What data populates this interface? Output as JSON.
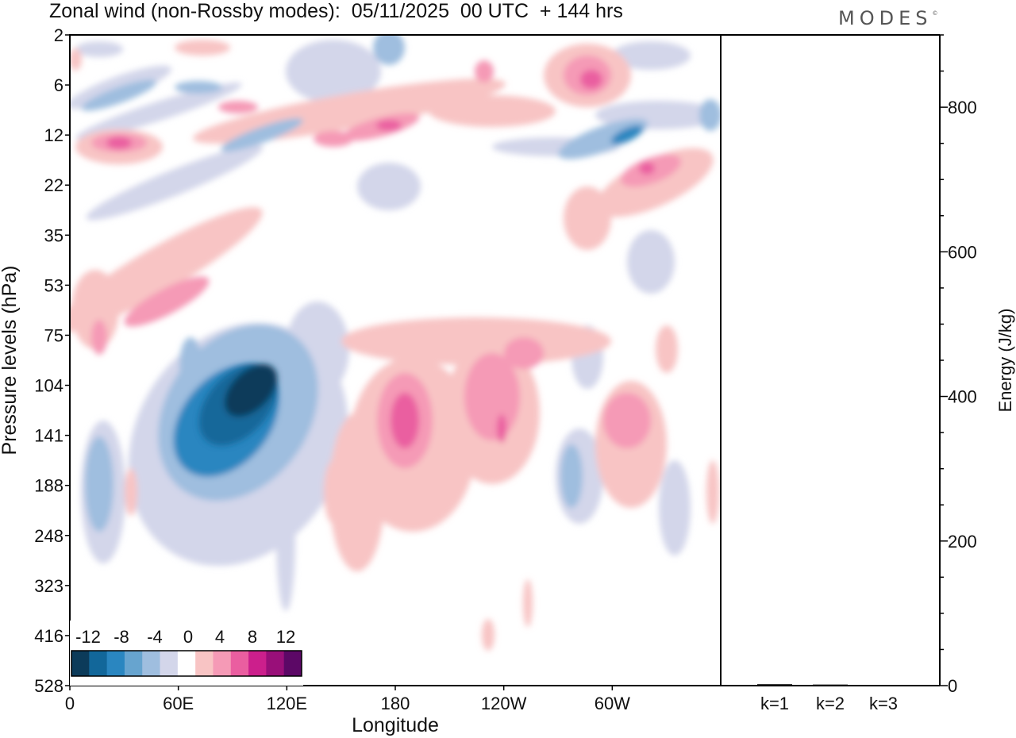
{
  "title": "Zonal wind (non-Rossby modes):  05/11/2025  00 UTC  + 144 hrs",
  "logo": "MODES",
  "logo_mark": "©",
  "chart_data": [
    {
      "type": "heatmap",
      "title": "Zonal wind (non-Rossby modes):  05/11/2025  00 UTC  + 144 hrs",
      "xlabel": "Longitude",
      "ylabel": "Pressure levels (hPa)",
      "x_ticks": [
        {
          "lon": 0,
          "label": "0"
        },
        {
          "lon": 60,
          "label": "60E"
        },
        {
          "lon": 120,
          "label": "120E"
        },
        {
          "lon": 180,
          "label": "180"
        },
        {
          "lon": 240,
          "label": "120W"
        },
        {
          "lon": 300,
          "label": "60W"
        }
      ],
      "x_range": [
        0,
        360
      ],
      "y_ticks": [
        "2",
        "6",
        "12",
        "22",
        "35",
        "53",
        "75",
        "104",
        "141",
        "188",
        "248",
        "323",
        "416",
        "528"
      ],
      "colorbar": {
        "labels": [
          "-12",
          "-8",
          "-4",
          "0",
          "4",
          "8",
          "12"
        ],
        "levels": [
          -14,
          -12,
          -10,
          -8,
          -6,
          -4,
          -2,
          2,
          4,
          6,
          8,
          10,
          12,
          14
        ],
        "colors": [
          "#0c3b5a",
          "#12679a",
          "#2a86c0",
          "#67a4cf",
          "#9fbedf",
          "#d3d6ea",
          "#ffffff",
          "#f8c4c4",
          "#f59ab6",
          "#ea5ea0",
          "#cc1f8c",
          "#990f79",
          "#5c0866"
        ]
      },
      "features": [
        {
          "lon": 100,
          "level": "104",
          "value": -14,
          "note": "strongest easterly core"
        },
        {
          "lon": 85,
          "level": "141",
          "value": -10
        },
        {
          "lon": 188,
          "level": "141",
          "value": 8
        },
        {
          "lon": 240,
          "level": "141",
          "value": 8
        },
        {
          "lon": 300,
          "level": "141",
          "value": 6
        },
        {
          "lon": 50,
          "level": "75",
          "value": 6
        },
        {
          "lon": 180,
          "level": "12",
          "value": 8
        },
        {
          "lon": 290,
          "level": "12",
          "value": -10
        },
        {
          "lon": 280,
          "level": "6",
          "value": 8
        },
        {
          "lon": 30,
          "level": "12",
          "value": 8
        }
      ]
    },
    {
      "type": "bar",
      "categories": [
        "k=1",
        "k=2",
        "k=3"
      ],
      "values": [
        2,
        1.5,
        1
      ],
      "ylabel": "Energy (J/kg)",
      "ylim": [
        0,
        900
      ],
      "y_ticks": [
        0,
        200,
        400,
        600,
        800
      ]
    }
  ]
}
